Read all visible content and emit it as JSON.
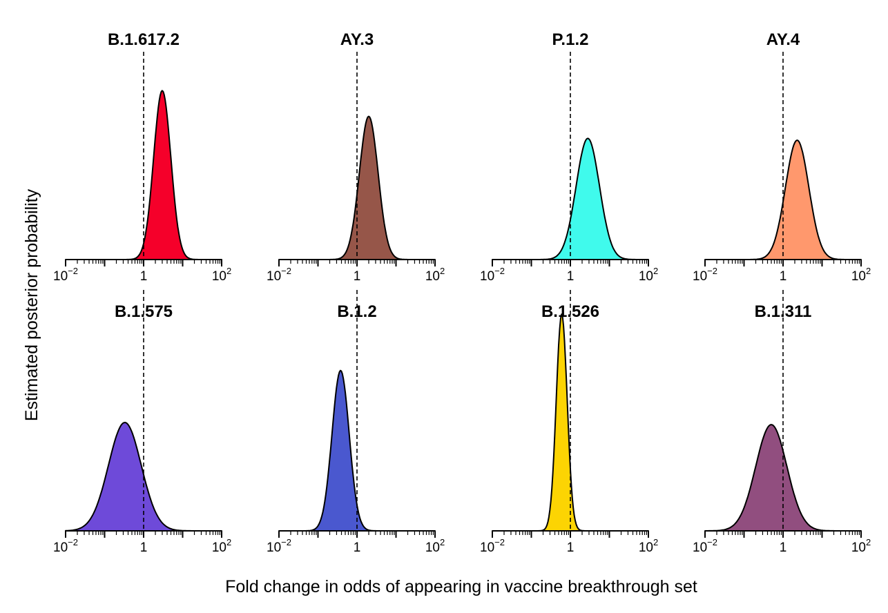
{
  "figure": {
    "xlabel": "Fold change in odds of appearing in vaccine breakthrough set",
    "ylabel": "Estimated posterior probability"
  },
  "chart_data": {
    "type": "area",
    "x_scale": "log10",
    "xlim": [
      0.01,
      100
    ],
    "x_ticks": [
      {
        "value": 0.01,
        "base": "10",
        "exp": "−2"
      },
      {
        "value": 1,
        "base": "1",
        "exp": ""
      },
      {
        "value": 100,
        "base": "10",
        "exp": "2"
      }
    ],
    "reference_line_x": 1,
    "reference_line_style": "dashed",
    "panels": [
      {
        "title": "B.1.617.2",
        "color": "#F5002A",
        "mode": 3.0,
        "sd_log10": 0.22,
        "peak": 0.92
      },
      {
        "title": "AY.3",
        "color": "#965649",
        "mode": 2.0,
        "sd_log10": 0.24,
        "peak": 0.78
      },
      {
        "title": "P.1.2",
        "color": "#40FAEC",
        "mode": 2.8,
        "sd_log10": 0.3,
        "peak": 0.66
      },
      {
        "title": "AY.4",
        "color": "#FF986D",
        "mode": 2.3,
        "sd_log10": 0.3,
        "peak": 0.65
      },
      {
        "title": "B.1.575",
        "color": "#6E4AD9",
        "mode": 0.33,
        "sd_log10": 0.42,
        "peak": 0.5
      },
      {
        "title": "B.1.2",
        "color": "#4A58CF",
        "mode": 0.38,
        "sd_log10": 0.22,
        "peak": 0.74
      },
      {
        "title": "B.1.526",
        "color": "#FCD403",
        "mode": 0.6,
        "sd_log10": 0.14,
        "peak": 1.0
      },
      {
        "title": "B.1.311",
        "color": "#914E7F",
        "mode": 0.5,
        "sd_log10": 0.4,
        "peak": 0.49
      }
    ]
  }
}
